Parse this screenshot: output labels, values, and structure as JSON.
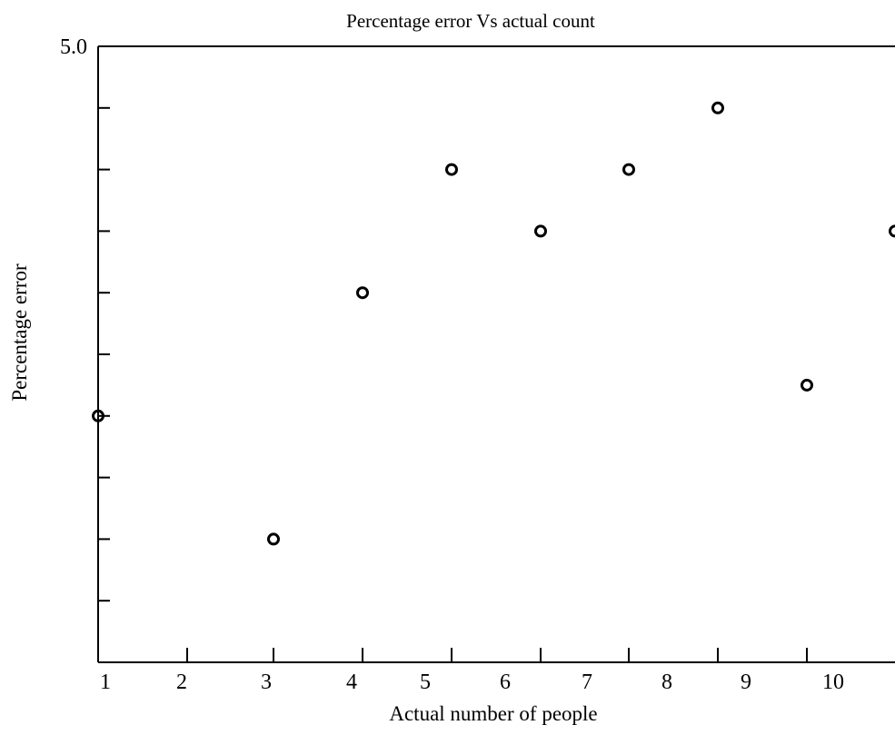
{
  "chart_data": {
    "type": "scatter",
    "title": "Percentage error Vs actual count",
    "xlabel": "Actual number of people",
    "ylabel": "Percentage error",
    "x_tick_labels": [
      "1",
      "2",
      "3",
      "4",
      "5",
      "6",
      "7",
      "8",
      "9",
      "10"
    ],
    "y_tick_labels": [
      "5.0"
    ],
    "xlim": [
      1,
      10
    ],
    "ylim": [
      0,
      5
    ],
    "y_tick_step": 0.5,
    "grid": false,
    "legend": "none",
    "colors": {
      "axis": "#000000",
      "marker": "#000000",
      "background": "#ffffff"
    },
    "points": [
      {
        "x": 1.0,
        "y": 2.0
      },
      {
        "x": 3.0,
        "y": 1.0
      },
      {
        "x": 4.0,
        "y": 3.0
      },
      {
        "x": 5.0,
        "y": 4.0
      },
      {
        "x": 6.0,
        "y": 3.5
      },
      {
        "x": 7.0,
        "y": 4.0
      },
      {
        "x": 8.0,
        "y": 4.5
      },
      {
        "x": 9.0,
        "y": 2.25
      },
      {
        "x": 10.0,
        "y": 3.5
      }
    ]
  }
}
